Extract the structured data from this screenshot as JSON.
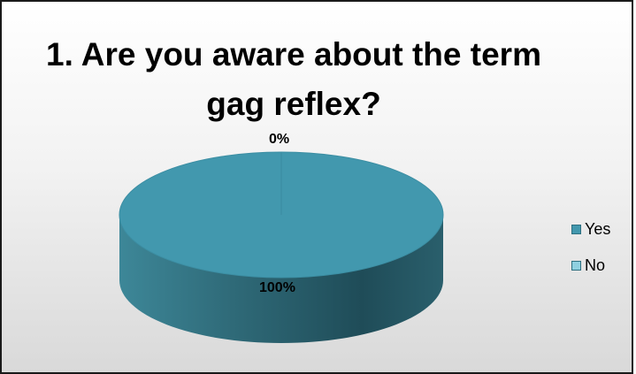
{
  "chart_data": {
    "type": "pie",
    "title": "1. Are you aware about the term gag reflex?",
    "categories": [
      "Yes",
      "No"
    ],
    "values": [
      100,
      0
    ],
    "data_labels": [
      "100%",
      "0%"
    ],
    "colors": [
      "#4298ae",
      "#8fd0e0"
    ],
    "legend_position": "right",
    "style": "3d"
  }
}
